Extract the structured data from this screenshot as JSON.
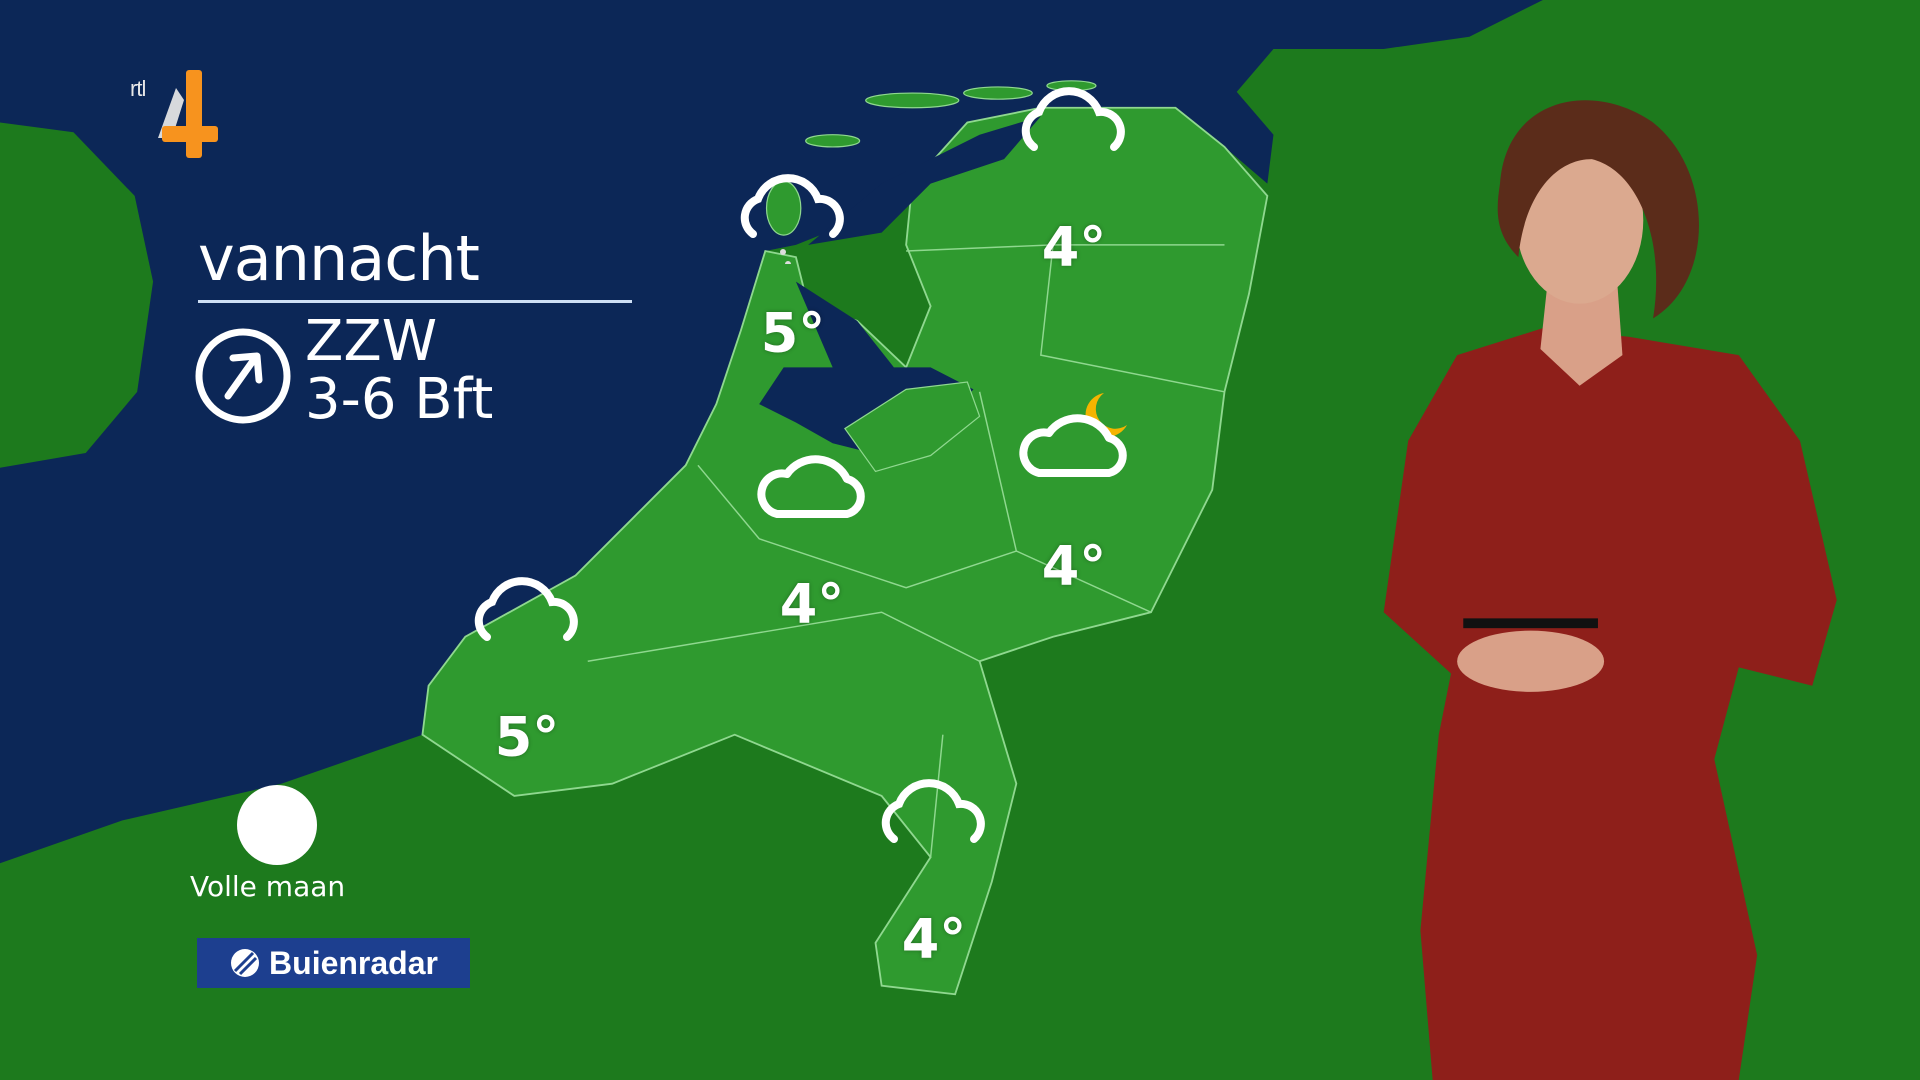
{
  "logo": {
    "text": "rtl 4",
    "brand_color": "#f7931e"
  },
  "forecast": {
    "period": "vannacht",
    "wind_direction": "ZZW",
    "wind_force": "3-6 Bft",
    "wind_icon": "arrow-up-right-circle-icon"
  },
  "moon": {
    "phase_label": "Volle maan",
    "icon": "full-moon-icon"
  },
  "sponsor": {
    "label": "Buienradar",
    "color": "#1d3f8f"
  },
  "colors": {
    "sea": "#0c2757",
    "land": "#1d7a1d",
    "netherlands": "#2f9a2f",
    "dress": "#8e1f1a"
  },
  "locations": [
    {
      "region": "Noord-Holland",
      "temp": "5°",
      "icon": "cloud-light-rain-icon"
    },
    {
      "region": "Groningen",
      "temp": "4°",
      "icon": "cloud-icon"
    },
    {
      "region": "Utrecht",
      "temp": "4°",
      "icon": "cloud-icon"
    },
    {
      "region": "Overijssel",
      "temp": "4°",
      "icon": "cloud-moon-icon"
    },
    {
      "region": "Zeeland",
      "temp": "5°",
      "icon": "cloud-icon"
    },
    {
      "region": "Limburg",
      "temp": "4°",
      "icon": "cloud-icon"
    }
  ]
}
